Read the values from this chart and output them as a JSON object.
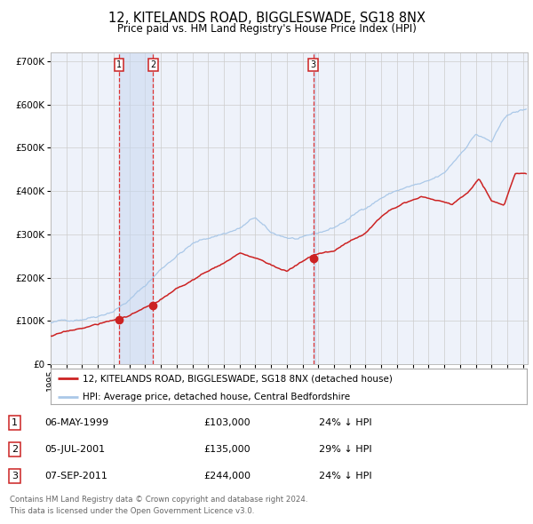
{
  "title": "12, KITELANDS ROAD, BIGGLESWADE, SG18 8NX",
  "subtitle": "Price paid vs. HM Land Registry's House Price Index (HPI)",
  "title_fontsize": 10.5,
  "subtitle_fontsize": 8.5,
  "background_color": "#ffffff",
  "plot_bg_color": "#eef2fa",
  "grid_color": "#cccccc",
  "hpi_color": "#aac8e8",
  "price_color": "#cc2222",
  "ylim": [
    0,
    720000
  ],
  "yticks": [
    0,
    100000,
    200000,
    300000,
    400000,
    500000,
    600000,
    700000
  ],
  "ytick_labels": [
    "£0",
    "£100K",
    "£200K",
    "£300K",
    "£400K",
    "£500K",
    "£600K",
    "£700K"
  ],
  "xlim_start": 1995,
  "xlim_end": 2025.3,
  "transactions": [
    {
      "num": 1,
      "date_num": 1999.35,
      "price": 103000,
      "label": "1",
      "date_str": "06-MAY-1999",
      "price_str": "£103,000",
      "hpi_rel": "24% ↓ HPI"
    },
    {
      "num": 2,
      "date_num": 2001.51,
      "price": 135000,
      "label": "2",
      "date_str": "05-JUL-2001",
      "price_str": "£135,000",
      "hpi_rel": "29% ↓ HPI"
    },
    {
      "num": 3,
      "date_num": 2011.68,
      "price": 244000,
      "label": "3",
      "date_str": "07-SEP-2011",
      "price_str": "£244,000",
      "hpi_rel": "24% ↓ HPI"
    }
  ],
  "legend_line1": "12, KITELANDS ROAD, BIGGLESWADE, SG18 8NX (detached house)",
  "legend_line2": "HPI: Average price, detached house, Central Bedfordshire",
  "footer_line1": "Contains HM Land Registry data © Crown copyright and database right 2024.",
  "footer_line2": "This data is licensed under the Open Government Licence v3.0.",
  "hpi_base_years": [
    1995,
    1996,
    1997,
    1998,
    1999,
    2000,
    2001,
    2002,
    2003,
    2004,
    2005,
    2006,
    2007,
    2008,
    2009,
    2010,
    2011,
    2012,
    2013,
    2014,
    2015,
    2016,
    2017,
    2018,
    2019,
    2020,
    2021,
    2022,
    2023,
    2024,
    2025
  ],
  "hpi_base_vals": [
    95000,
    99000,
    107000,
    118000,
    133000,
    158000,
    190000,
    228000,
    262000,
    288000,
    301000,
    313000,
    325000,
    348000,
    308000,
    299000,
    294000,
    303000,
    316000,
    338000,
    363000,
    388000,
    405000,
    415000,
    420000,
    435000,
    480000,
    530000,
    510000,
    570000,
    580000
  ],
  "price_key_years": [
    1995.0,
    1999.35,
    2001.51,
    2007.0,
    2008.5,
    2010.0,
    2011.68,
    2013.0,
    2015.0,
    2016.5,
    2017.5,
    2018.5,
    2019.5,
    2020.5,
    2021.5,
    2022.2,
    2023.0,
    2023.8,
    2024.5
  ],
  "price_key_vals": [
    65000,
    103000,
    135000,
    248000,
    230000,
    207000,
    244000,
    252000,
    295000,
    350000,
    372000,
    385000,
    378000,
    368000,
    395000,
    430000,
    380000,
    370000,
    440000
  ]
}
